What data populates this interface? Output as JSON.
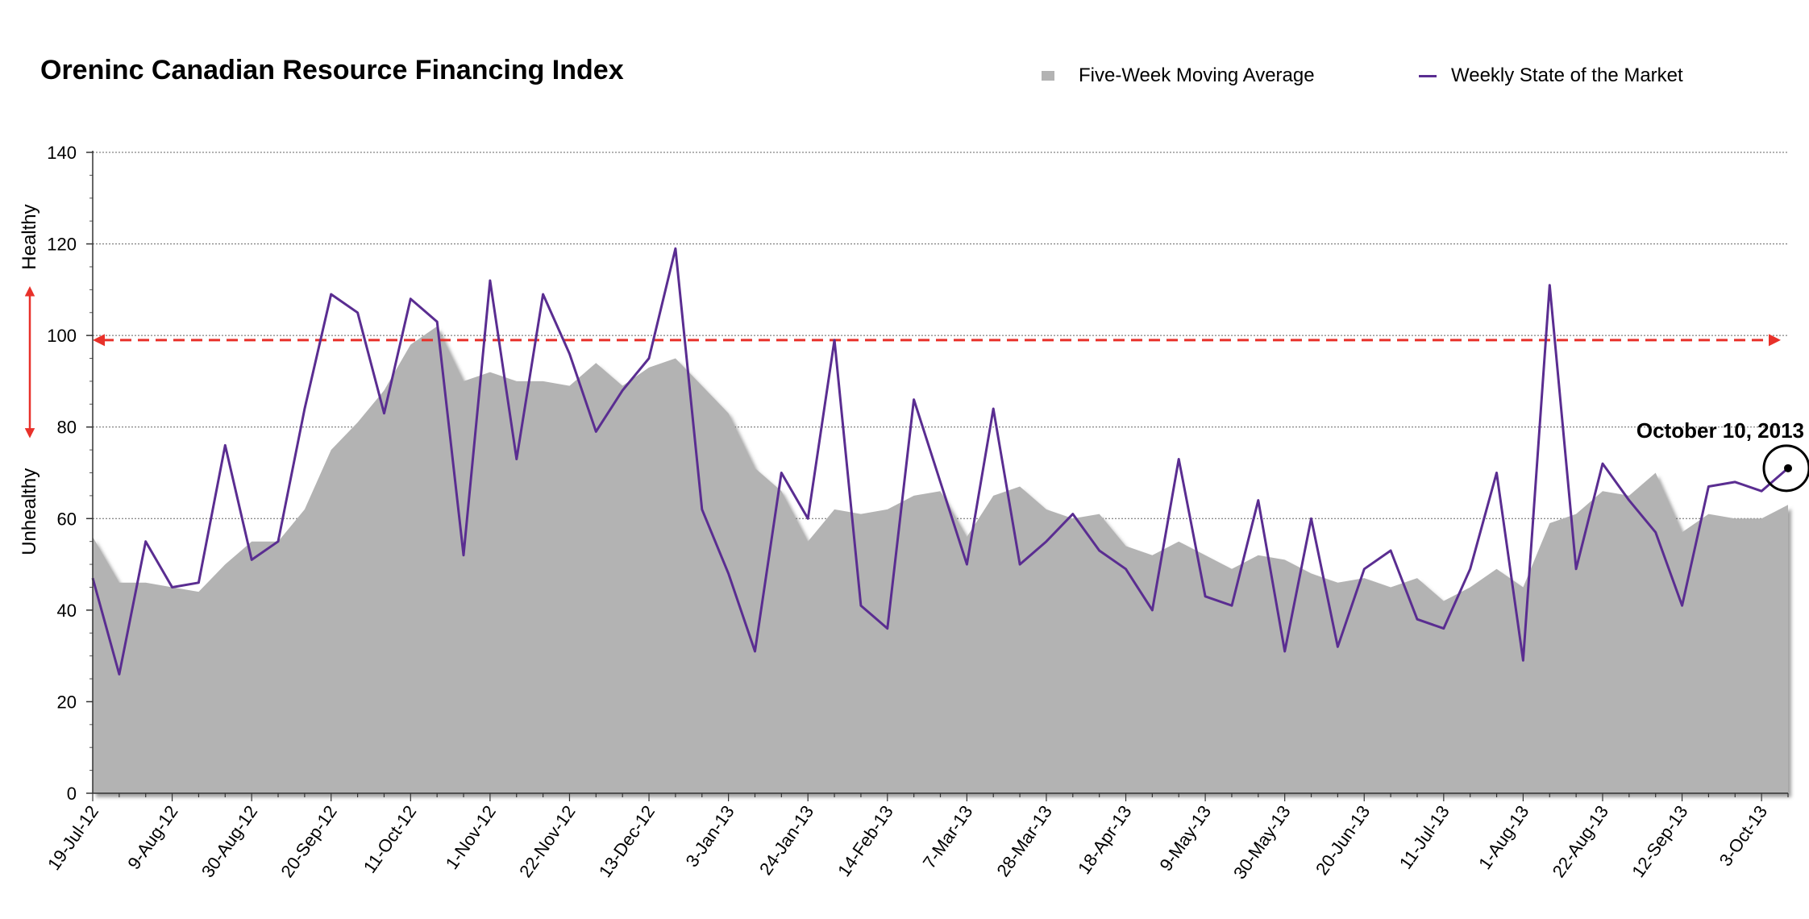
{
  "chart_data": {
    "type": "area",
    "title": "Oreninc Canadian Resource Financing Index",
    "xlabel": "",
    "ylabel": "",
    "ylim": [
      0,
      140
    ],
    "yticks": [
      0,
      20,
      40,
      60,
      80,
      100,
      120,
      140
    ],
    "grid": true,
    "legend_position": "top-right",
    "x_tick_labels": [
      "19-Jul-12",
      "9-Aug-12",
      "30-Aug-12",
      "20-Sep-12",
      "11-Oct-12",
      "1-Nov-12",
      "22-Nov-12",
      "13-Dec-12",
      "3-Jan-13",
      "24-Jan-13",
      "14-Feb-13",
      "7-Mar-13",
      "28-Mar-13",
      "18-Apr-13",
      "9-May-13",
      "30-May-13",
      "20-Jun-13",
      "11-Jul-13",
      "1-Aug-13",
      "22-Aug-13",
      "12-Sep-13",
      "3-Oct-13"
    ],
    "x_tick_every": 3,
    "side_labels": {
      "upper": "Healthy",
      "lower": "Unhealthy"
    },
    "threshold": {
      "value": 99,
      "style": "dashed",
      "color": "#e8312a"
    },
    "annotation": {
      "text": "October 10, 2013",
      "point_index": 64
    },
    "series": [
      {
        "name": "Five-Week Moving Average",
        "type": "area",
        "color": "#b3b3b3",
        "values": [
          56,
          46,
          46,
          45,
          44,
          50,
          55,
          55,
          62,
          75,
          81,
          88,
          98,
          102,
          90,
          92,
          90,
          90,
          89,
          94,
          89,
          93,
          95,
          89,
          83,
          71,
          66,
          55,
          62,
          61,
          62,
          65,
          66,
          56,
          65,
          67,
          62,
          60,
          61,
          54,
          52,
          55,
          52,
          49,
          52,
          51,
          48,
          46,
          47,
          45,
          47,
          42,
          45,
          49,
          45,
          59,
          61,
          66,
          65,
          70,
          57,
          61,
          60,
          60,
          63
        ]
      },
      {
        "name": "Weekly State of the Market",
        "type": "line",
        "color": "#5a2d91",
        "values": [
          47,
          26,
          55,
          45,
          46,
          76,
          51,
          55,
          84,
          109,
          105,
          83,
          108,
          103,
          52,
          112,
          73,
          109,
          96,
          79,
          88,
          95,
          119,
          62,
          48,
          31,
          70,
          60,
          99,
          41,
          36,
          86,
          68,
          50,
          84,
          50,
          55,
          61,
          53,
          49,
          40,
          73,
          43,
          41,
          64,
          31,
          60,
          32,
          49,
          53,
          38,
          36,
          49,
          70,
          29,
          111,
          49,
          72,
          64,
          57,
          41,
          67,
          68,
          66,
          71
        ]
      }
    ]
  }
}
